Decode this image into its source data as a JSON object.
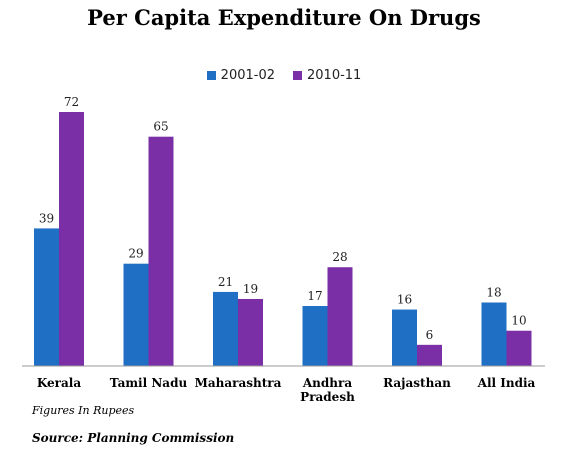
{
  "chart_data": {
    "type": "bar",
    "title": "Per Capita Expenditure On Drugs",
    "categories": [
      "Kerala",
      "Tamil Nadu",
      "Maharashtra",
      "Andhra Pradesh",
      "Rajasthan",
      "All India"
    ],
    "category_lines": [
      [
        "Kerala"
      ],
      [
        "Tamil Nadu"
      ],
      [
        "Maharashtra"
      ],
      [
        "Andhra",
        "Pradesh"
      ],
      [
        "Rajasthan"
      ],
      [
        "All India"
      ]
    ],
    "series": [
      {
        "name": "2001-02",
        "values": [
          39,
          29,
          21,
          17,
          16,
          18
        ],
        "color": "#1f6fc5"
      },
      {
        "name": "2010-11",
        "values": [
          72,
          65,
          19,
          28,
          6,
          10
        ],
        "color": "#7b2fa6"
      }
    ],
    "ylim": [
      0,
      72
    ],
    "grid": false,
    "legend_position": "top-center",
    "data_labels": true
  },
  "footnote": "Figures In Rupees",
  "source": "Source: Planning Commission"
}
